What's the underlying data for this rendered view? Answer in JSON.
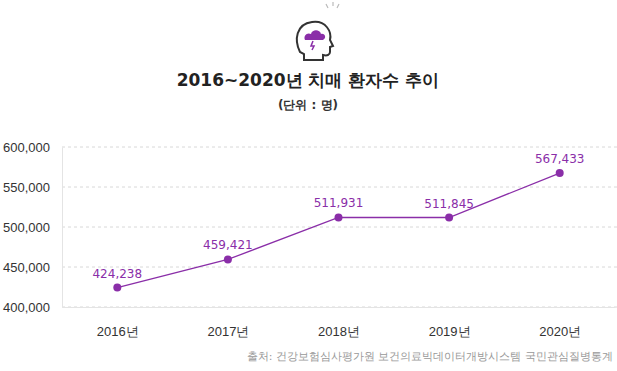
{
  "chart_data": {
    "type": "line",
    "title": "2016~2020년 치매 환자수 추이",
    "subtitle": "(단위 : 명)",
    "source": "출처: 건강보험심사평가원 보건의료빅데이터개방시스템 국민관심질병통계",
    "categories": [
      "2016년",
      "2017년",
      "2018년",
      "2019년",
      "2020년"
    ],
    "values": [
      424238,
      459421,
      511931,
      511845,
      567433
    ],
    "value_labels": [
      "424,238",
      "459,421",
      "511,931",
      "511,845",
      "567,433"
    ],
    "color": "#8a2ea8",
    "marker": "circle",
    "data_labels": true,
    "grid": true,
    "ylim": [
      400000,
      600000
    ],
    "yticks": [
      {
        "value": 400000,
        "label": "400,000"
      },
      {
        "value": 450000,
        "label": "450,000"
      },
      {
        "value": 500000,
        "label": "500,000"
      },
      {
        "value": 550000,
        "label": "550,000"
      },
      {
        "value": 600000,
        "label": "600,000"
      }
    ]
  }
}
